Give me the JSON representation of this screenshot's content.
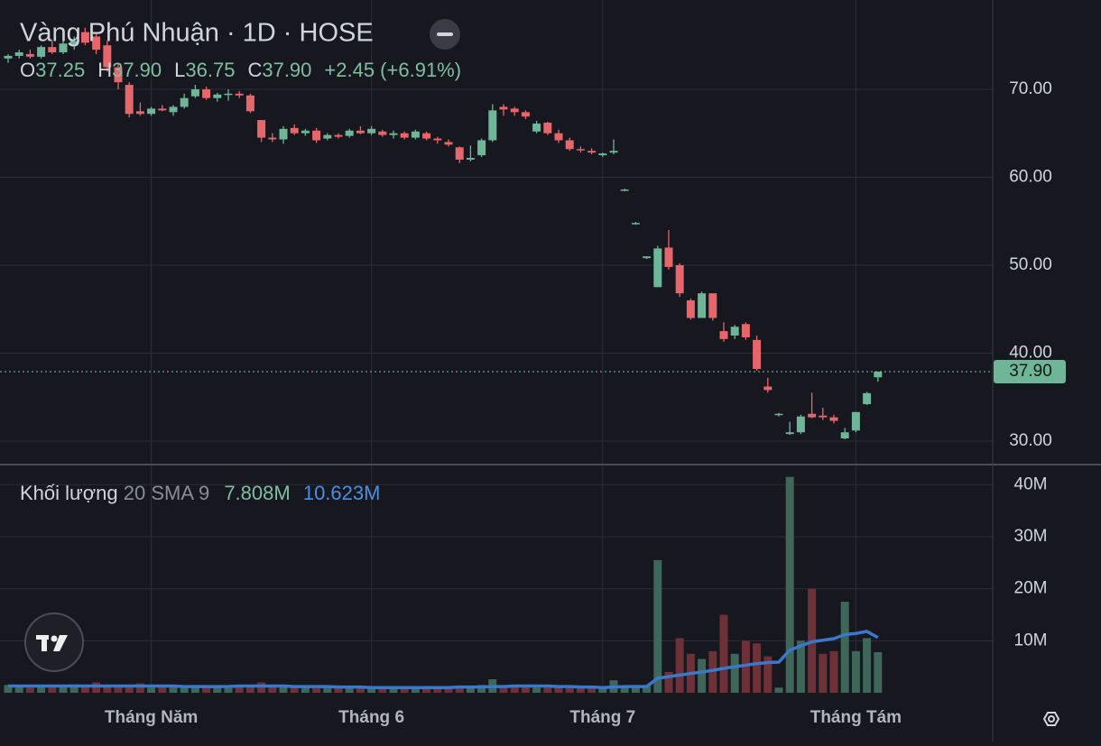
{
  "chart_data": [
    {
      "type": "candlestick",
      "title": "Vàng Phú Nhuận · 1D · HOSE",
      "header": [
        {
          "key": "O",
          "value": "37.25"
        },
        {
          "key": "H",
          "value": "37.90"
        },
        {
          "key": "L",
          "value": "36.75"
        },
        {
          "key": "C",
          "value": "37.90"
        }
      ],
      "change": "+2.45 (+6.91%)",
      "categories": [
        null,
        null,
        null,
        null,
        null,
        null,
        null,
        null,
        null,
        null,
        null,
        null,
        null,
        "Tháng Năm",
        null,
        null,
        null,
        null,
        null,
        null,
        null,
        null,
        null,
        null,
        null,
        null,
        null,
        null,
        null,
        null,
        null,
        null,
        null,
        "Tháng 6",
        null,
        null,
        null,
        null,
        null,
        null,
        null,
        null,
        null,
        null,
        null,
        null,
        null,
        null,
        null,
        null,
        null,
        null,
        null,
        null,
        "Tháng 7",
        null,
        null,
        null,
        null,
        null,
        null,
        null,
        null,
        null,
        null,
        null,
        null,
        null,
        null,
        null,
        null,
        null,
        null,
        null,
        null,
        null,
        null,
        "Tháng Tám",
        null,
        null
      ],
      "open": [
        73.5,
        73.8,
        74,
        73.7,
        74.8,
        74.2,
        75,
        76.5,
        76,
        75,
        72.5,
        70.5,
        67.5,
        67.2,
        67.8,
        67.4,
        68,
        69.2,
        70,
        69,
        69.4,
        69.5,
        69.3,
        66.5,
        64.5,
        64.3,
        65.6,
        65,
        65.3,
        64.4,
        64.8,
        64.7,
        65.3,
        65,
        65.2,
        64.8,
        65,
        64.5,
        65,
        64.4,
        64,
        63.4,
        62,
        62.5,
        64.2,
        68,
        67.8,
        67.4,
        65.2,
        66.2,
        65,
        64.2,
        63.2,
        63,
        62.5,
        62.8,
        58.6,
        54.8,
        50.8,
        47.5,
        52,
        50,
        46,
        44,
        46.8,
        42.5,
        42,
        43.3,
        41.5,
        36.2,
        33,
        30.8,
        31,
        33.1,
        32.9,
        32.7,
        30.3,
        31.2,
        34.2,
        37.25
      ],
      "high": [
        74,
        74.5,
        74.5,
        75,
        75.5,
        75.5,
        76,
        77,
        76.5,
        75.5,
        73,
        70.8,
        68.5,
        68,
        68.2,
        68.2,
        69.5,
        70.5,
        70.3,
        69.6,
        70,
        69.8,
        69.5,
        66.5,
        65,
        65.8,
        66,
        65.5,
        65.6,
        65,
        65,
        65.5,
        65.8,
        65.8,
        65.4,
        65.3,
        65.2,
        65.4,
        65.2,
        64.6,
        64.3,
        63.5,
        63.6,
        64.4,
        68.3,
        68.3,
        68,
        67.6,
        66.4,
        66.3,
        65.4,
        64.5,
        63.5,
        63.3,
        62.8,
        64.3,
        58.7,
        54.9,
        51,
        52.2,
        54,
        50.2,
        46.2,
        47,
        46.8,
        43.5,
        43.2,
        43.5,
        42,
        37.2,
        33.2,
        32.2,
        33,
        35.5,
        33.8,
        33,
        31.5,
        33.3,
        35.6,
        37.9
      ],
      "low": [
        73,
        73.5,
        73.5,
        73.5,
        74,
        74,
        74.5,
        75,
        74,
        72,
        70,
        66.8,
        67,
        67,
        67.5,
        67,
        67.8,
        69,
        68.8,
        68.6,
        68.7,
        69,
        67.3,
        64,
        64,
        63.8,
        64.8,
        64.7,
        63.9,
        64.2,
        64.4,
        64.5,
        64.9,
        64.8,
        64.6,
        64.4,
        64.3,
        64.3,
        64.2,
        63.8,
        63.5,
        61.6,
        61.8,
        62.3,
        64,
        67,
        67,
        66.6,
        65,
        64.8,
        63.9,
        63,
        62.8,
        62.6,
        62.3,
        62.6,
        58.4,
        54.6,
        50.7,
        47.5,
        49.5,
        46.4,
        43.8,
        44,
        43.7,
        41.3,
        41.6,
        41.5,
        38,
        35.5,
        32.8,
        30.7,
        30.8,
        32.6,
        32.4,
        32,
        30.2,
        31,
        34.1,
        36.75
      ],
      "close": [
        73.8,
        74.2,
        73.7,
        74.8,
        74.2,
        75.2,
        75.5,
        75.3,
        74.5,
        72.5,
        70.8,
        67.2,
        67.2,
        67.8,
        67.6,
        68,
        69,
        70,
        69,
        69.4,
        69.5,
        69.3,
        67.5,
        64.5,
        64.3,
        65.5,
        65,
        65.3,
        64.2,
        64.8,
        64.6,
        65.3,
        65,
        65.5,
        64.8,
        65,
        64.5,
        65.2,
        64.4,
        64.2,
        63.7,
        62,
        62.2,
        64.2,
        67.6,
        67.7,
        67.4,
        66.9,
        66.1,
        65,
        64.2,
        63.2,
        63.1,
        62.8,
        62.7,
        63,
        58.6,
        54.8,
        51,
        51.9,
        49.8,
        46.8,
        44,
        46.8,
        44,
        41.6,
        43,
        41.8,
        38.2,
        35.8,
        33.1,
        31,
        32.8,
        32.7,
        32.7,
        32.3,
        31,
        33.3,
        35.45,
        37.9
      ],
      "up_color": "#6fb597",
      "down_color": "#e5676b",
      "ylim": [
        27.33,
        80.15
      ],
      "yticks": [
        {
          "value": 30,
          "label": "30.00"
        },
        {
          "value": 40,
          "label": "40.00"
        },
        {
          "value": 50,
          "label": "50.00"
        },
        {
          "value": 60,
          "label": "60.00"
        },
        {
          "value": 70,
          "label": "70.00"
        }
      ],
      "last_price": {
        "value": 37.9,
        "label": "37.90"
      },
      "grid": true
    },
    {
      "type": "bar",
      "title": "Khối lượng",
      "params": "20 SMA 9",
      "values": [
        1.5,
        1.2,
        1.0,
        1.3,
        1.1,
        1.4,
        1.6,
        1.2,
        2.0,
        1.3,
        1.5,
        1.2,
        1.8,
        1.0,
        1.1,
        1.2,
        1.0,
        1.1,
        1.3,
        1.0,
        0.9,
        1.1,
        1.4,
        2.0,
        1.3,
        1.1,
        1.2,
        1.0,
        0.9,
        1.1,
        0.9,
        1.0,
        1.1,
        0.9,
        1.0,
        0.8,
        1.0,
        0.9,
        1.1,
        1.0,
        1.2,
        1.3,
        1.2,
        1.5,
        2.6,
        1.4,
        1.2,
        1.1,
        1.0,
        1.0,
        1.1,
        0.9,
        1.0,
        0.9,
        1.0,
        2.4,
        1.1,
        1.2,
        1.5,
        25.5,
        4,
        10.5,
        7.5,
        6.5,
        8,
        15,
        7.5,
        10,
        9.5,
        7,
        1,
        41.5,
        10,
        20,
        7.5,
        8,
        17.5,
        8,
        10.5,
        7.808
      ],
      "value_labels_last": "7.808M",
      "up_color": "#3e6659",
      "down_color": "#6e3138",
      "sma": {
        "name": "SMA 9",
        "color": "#3a78c9",
        "last_label": "10.623M",
        "values": [
          1.3,
          1.3,
          1.3,
          1.3,
          1.3,
          1.3,
          1.3,
          1.3,
          1.3,
          1.3,
          1.3,
          1.3,
          1.3,
          1.3,
          1.3,
          1.3,
          1.2,
          1.2,
          1.2,
          1.2,
          1.2,
          1.3,
          1.3,
          1.3,
          1.3,
          1.3,
          1.2,
          1.2,
          1.2,
          1.2,
          1.1,
          1.1,
          1.1,
          1.0,
          1.0,
          1.0,
          1.0,
          1.0,
          1.0,
          1.0,
          1.0,
          1.1,
          1.1,
          1.1,
          1.2,
          1.2,
          1.3,
          1.3,
          1.3,
          1.3,
          1.2,
          1.2,
          1.1,
          1.1,
          1.0,
          1.1,
          1.2,
          1.2,
          1.2,
          2.8,
          3.1,
          3.4,
          3.7,
          4.0,
          4.3,
          4.7,
          5.0,
          5.3,
          5.6,
          5.8,
          5.9,
          8.2,
          9.0,
          9.8,
          10.1,
          10.4,
          11.2,
          11.4,
          11.8,
          10.623
        ]
      },
      "ylim": [
        0,
        43.87
      ],
      "yticks": [
        {
          "value": 10,
          "label": "10M"
        },
        {
          "value": 20,
          "label": "20M"
        },
        {
          "value": 30,
          "label": "30M"
        },
        {
          "value": 40,
          "label": "40M"
        }
      ],
      "grid": true
    }
  ]
}
